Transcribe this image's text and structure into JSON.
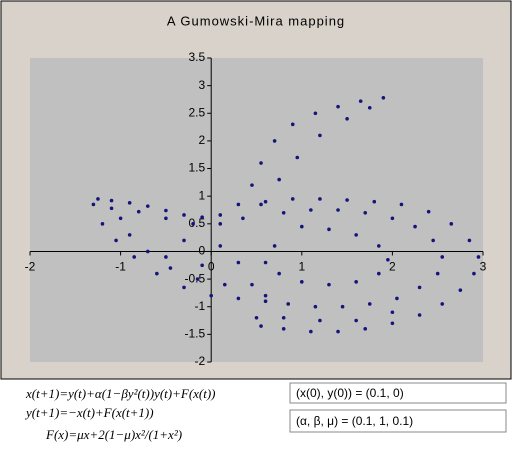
{
  "chart_data": {
    "type": "scatter",
    "title": "A Gumowski-Mira mapping",
    "color": "#14147a",
    "xlim": [
      -2,
      3
    ],
    "ylim": [
      -2,
      3.5
    ],
    "xticks": [
      -2,
      -1,
      0,
      1,
      2,
      3
    ],
    "yticks": [
      -2,
      -1.5,
      -1,
      -0.5,
      0,
      0.5,
      1,
      1.5,
      2,
      2.5,
      3,
      3.5
    ],
    "x": [
      -1.25,
      -1.1,
      -0.9,
      -0.7,
      -0.5,
      -0.3,
      -0.1,
      0.1,
      0.3,
      0.45,
      0.55,
      0.7,
      0.9,
      1.15,
      1.4,
      1.65,
      1.9,
      -1.1,
      -0.8,
      -0.5,
      -0.2,
      0.1,
      0.35,
      0.55,
      0.75,
      0.95,
      1.2,
      1.5,
      1.75,
      -1.3,
      -1.2,
      -1.05,
      -0.85,
      -0.6,
      -0.3,
      0.0,
      0.3,
      0.6,
      -1.0,
      -0.9,
      -0.7,
      -0.45,
      -0.15,
      0.15,
      0.45,
      0.6,
      0.9,
      1.2,
      1.5,
      1.8,
      2.1,
      2.4,
      2.65,
      2.85,
      2.95,
      2.9,
      2.75,
      2.55,
      2.3,
      2.0,
      1.7,
      1.4,
      1.1,
      0.8,
      0.55,
      0.8,
      1.1,
      1.4,
      1.7,
      2.0,
      2.25,
      2.45,
      2.55,
      2.5,
      2.3,
      2.05,
      1.75,
      1.45,
      1.15,
      0.85,
      0.6,
      1.0,
      1.3,
      1.6,
      1.85,
      1.95,
      1.85,
      1.6,
      1.3,
      1.0,
      0.75,
      0.6,
      0.5,
      0.8,
      1.2,
      1.6,
      2.0,
      -0.5,
      -0.3,
      0.1,
      0.3,
      0.7,
      -0.1
    ],
    "values": [
      0.95,
      0.92,
      0.88,
      0.82,
      0.74,
      0.66,
      0.62,
      0.66,
      0.85,
      1.2,
      1.6,
      2.0,
      2.3,
      2.5,
      2.62,
      2.72,
      2.78,
      0.78,
      0.72,
      0.6,
      0.5,
      0.5,
      0.6,
      0.85,
      1.3,
      1.7,
      2.1,
      2.4,
      2.6,
      0.85,
      0.5,
      0.2,
      -0.1,
      -0.4,
      -0.65,
      -0.8,
      -0.85,
      -0.8,
      0.6,
      0.3,
      0.0,
      -0.3,
      -0.5,
      -0.6,
      -0.6,
      0.9,
      0.95,
      0.95,
      0.93,
      0.9,
      0.85,
      0.72,
      0.5,
      0.2,
      -0.1,
      -0.4,
      -0.7,
      -0.95,
      -1.15,
      -1.3,
      -1.4,
      -1.45,
      -1.45,
      -1.4,
      -1.35,
      0.7,
      0.75,
      0.75,
      0.7,
      0.6,
      0.45,
      0.2,
      -0.1,
      -0.4,
      -0.65,
      -0.85,
      -0.95,
      -1.0,
      -1.0,
      -0.95,
      -0.9,
      0.45,
      0.4,
      0.3,
      0.1,
      -0.15,
      -0.4,
      -0.55,
      -0.6,
      -0.55,
      -0.4,
      -0.2,
      -1.2,
      -1.2,
      -1.25,
      -1.25,
      -1.1,
      -0.1,
      0.2,
      0.1,
      -0.2,
      0.1,
      -0.25
    ]
  },
  "formulas": [
    "x(t+1)=y(t)+α(1−βy²(t))y(t)+F(x(t))",
    "y(t+1)=−x(t)+F(x(t+1))",
    "F(x)=μx+2(1−μ)x²/(1+x²)"
  ],
  "initial_condition": "(x(0), y(0)) = (0.1, 0)",
  "parameters": "(α, β, μ) = (0.1, 1, 0.1)"
}
